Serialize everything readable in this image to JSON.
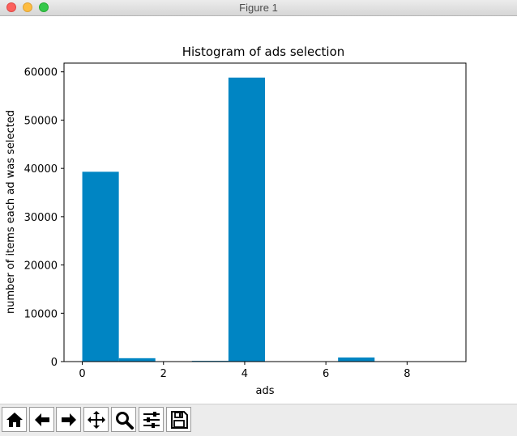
{
  "window": {
    "title": "Figure 1"
  },
  "toolbar": {
    "buttons": [
      {
        "name": "home-button",
        "icon": "home-icon"
      },
      {
        "name": "back-button",
        "icon": "arrow-left-icon"
      },
      {
        "name": "forward-button",
        "icon": "arrow-right-icon"
      },
      {
        "name": "pan-button",
        "icon": "move-icon"
      },
      {
        "name": "zoom-button",
        "icon": "magnifier-icon"
      },
      {
        "name": "configure-subplots-button",
        "icon": "sliders-icon"
      },
      {
        "name": "save-button",
        "icon": "floppy-disk-icon"
      }
    ]
  },
  "chart_data": {
    "type": "bar",
    "title": "Histogram of ads selection",
    "xlabel": "ads",
    "ylabel": "number of items each ad was selected",
    "xlim": [
      -0.45,
      9.45
    ],
    "ylim": [
      0,
      61800
    ],
    "xticks": [
      0,
      2,
      4,
      6,
      8
    ],
    "yticks": [
      0,
      10000,
      20000,
      30000,
      40000,
      50000,
      60000
    ],
    "bar_color": "#0085c3",
    "bins": [
      {
        "x0": 0.0,
        "x1": 0.9,
        "value": 39300
      },
      {
        "x0": 0.9,
        "x1": 1.8,
        "value": 700
      },
      {
        "x0": 1.8,
        "x1": 2.7,
        "value": 0
      },
      {
        "x0": 2.7,
        "x1": 3.6,
        "value": 150
      },
      {
        "x0": 3.6,
        "x1": 4.5,
        "value": 58800
      },
      {
        "x0": 4.5,
        "x1": 5.4,
        "value": 0
      },
      {
        "x0": 5.4,
        "x1": 6.3,
        "value": 0
      },
      {
        "x0": 6.3,
        "x1": 7.2,
        "value": 850
      },
      {
        "x0": 7.2,
        "x1": 8.1,
        "value": 0
      },
      {
        "x0": 8.1,
        "x1": 9.0,
        "value": 0
      }
    ]
  }
}
